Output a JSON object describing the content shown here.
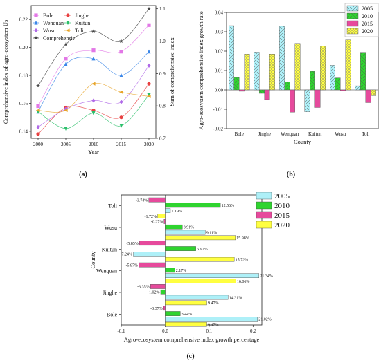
{
  "colors": {
    "2005": "#aef0f8",
    "2010": "#2fd42f",
    "2015": "#e64a9c",
    "2020": "#ffff40",
    "Bole": "#e277e6",
    "Jinghe": "#e84040",
    "Wenquan": "#3a86e8",
    "Kuitun": "#2bbf6a",
    "Wusu": "#b06ae8",
    "Toli": "#e7a52a",
    "Comprehensiv": "#444444"
  },
  "panel_labels": {
    "a": "(a)",
    "b": "(b)",
    "c": "(c)"
  },
  "chart_data": [
    {
      "type": "line",
      "panel": "(a)",
      "title": "",
      "xlabel": "Year",
      "ylabel": "Comprehensive index of agro-ecosystem Us",
      "y2label": "Sum of comprehensive index",
      "x": [
        2000,
        2005,
        2010,
        2015,
        2020
      ],
      "ylim": [
        0.135,
        0.23
      ],
      "y2lim": [
        0.7,
        1.11
      ],
      "yticks": [
        "0.14",
        "0.16",
        "0.18",
        "0.20",
        "0.22"
      ],
      "y2ticks": [
        "0.7",
        "0.8",
        "0.9",
        "1.0",
        "1.1"
      ],
      "legend_position": "top-left",
      "series": [
        {
          "name": "Bole",
          "values": [
            0.158,
            0.192,
            0.198,
            0.197,
            0.216
          ],
          "axis": "left",
          "marker": "square"
        },
        {
          "name": "Jinghe",
          "values": [
            0.138,
            0.157,
            0.155,
            0.15,
            0.174
          ],
          "axis": "left",
          "marker": "circle"
        },
        {
          "name": "Wenquan",
          "values": [
            0.154,
            0.188,
            0.192,
            0.18,
            0.197
          ],
          "axis": "left",
          "marker": "triangle"
        },
        {
          "name": "Kuitun",
          "values": [
            0.154,
            0.142,
            0.153,
            0.144,
            0.166
          ],
          "axis": "left",
          "marker": "triangle-down"
        },
        {
          "name": "Wusu",
          "values": [
            0.143,
            0.156,
            0.162,
            0.161,
            0.187
          ],
          "axis": "left",
          "marker": "diamond"
        },
        {
          "name": "Toli",
          "values": [
            0.155,
            0.155,
            0.174,
            0.168,
            0.165
          ],
          "axis": "left",
          "marker": "triangle-left"
        },
        {
          "name": "Comprehensiv",
          "values": [
            0.862,
            0.99,
            1.03,
            1.0,
            1.1
          ],
          "axis": "right",
          "marker": "star"
        }
      ]
    },
    {
      "type": "bar",
      "panel": "(b)",
      "title": "",
      "xlabel": "County",
      "ylabel": "Agro-ecosystem comprehensive index growth rate",
      "categories": [
        "Bole",
        "Jinghe",
        "Wenquan",
        "Kuitun",
        "Wusu",
        "Toli"
      ],
      "ylim": [
        -0.02,
        0.04
      ],
      "yticks": [
        "-0.02",
        "-0.01",
        "0.00",
        "0.01",
        "0.02",
        "0.03",
        "0.04"
      ],
      "legend_position": "top-right",
      "series": [
        {
          "name": "2005",
          "values": [
            0.0332,
            0.0195,
            0.0329,
            -0.0113,
            0.0127,
            0.0021
          ]
        },
        {
          "name": "2010",
          "values": [
            0.0064,
            -0.0018,
            0.004,
            0.0096,
            0.0062,
            0.0194
          ]
        },
        {
          "name": "2015",
          "values": [
            -0.0007,
            -0.005,
            -0.0115,
            -0.0091,
            -0.0004,
            -0.0066
          ]
        },
        {
          "name": "2020",
          "values": [
            0.0185,
            0.0185,
            0.024,
            0.0226,
            0.0258,
            -0.003
          ]
        }
      ]
    },
    {
      "type": "bar",
      "orientation": "horizontal",
      "panel": "(c)",
      "title": "",
      "xlabel": "Agro-ecosystem comprehensive index growth percentage",
      "ylabel": "County",
      "categories": [
        "Bole",
        "Jinghe",
        "Wenquan",
        "Kuitun",
        "Wusu",
        "Toli"
      ],
      "xlim": [
        -0.1,
        0.22
      ],
      "xticks": [
        "-0.1",
        "0.0",
        "0.1",
        "0.2"
      ],
      "legend_position": "top-right",
      "series": [
        {
          "name": "2005",
          "values": [
            0.2102,
            0.1431,
            0.2134,
            -0.0724,
            0.0911,
            0.0119
          ],
          "labels": [
            "21.02%",
            "14.31%",
            "21.34%",
            "-7.24%",
            "9.11%",
            "1.19%"
          ]
        },
        {
          "name": "2010",
          "values": [
            0.0344,
            -0.0102,
            0.0217,
            0.0697,
            0.0391,
            0.1256
          ],
          "labels": [
            "3.44%",
            "-1.02%",
            "2.17%",
            "6.97%",
            "3.91%",
            "12.56%"
          ]
        },
        {
          "name": "2015",
          "values": [
            -0.0037,
            -0.0335,
            -0.0597,
            -0.0585,
            -0.0027,
            -0.0374
          ],
          "labels": [
            "-0.37%",
            "-3.35%",
            "-5.97%",
            "-5.85%",
            "-0.27%",
            "-3.74%"
          ]
        },
        {
          "name": "2020",
          "values": [
            0.0947,
            0.0947,
            0.1606,
            0.1572,
            0.1598,
            -0.0172
          ],
          "labels": [
            "9.47%",
            "9.47%",
            "16.06%",
            "15.72%",
            "15.98%",
            "-1.72%"
          ]
        }
      ]
    }
  ]
}
